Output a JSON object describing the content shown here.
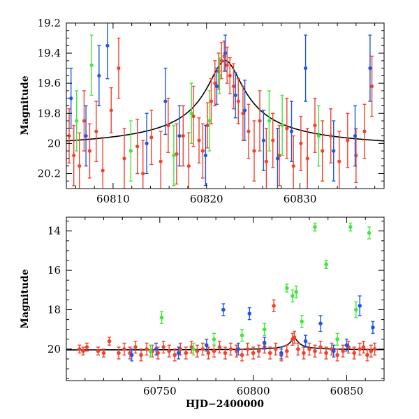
{
  "colors": {
    "red": "#f4412c",
    "blue": "#1e57e6",
    "green": "#45e63c",
    "model": "#000000",
    "axis": "#000000"
  },
  "chart_data": [
    {
      "type": "scatter",
      "panel": "top",
      "xlabel": "",
      "ylabel": "Magnitude",
      "xlim": [
        60805,
        60839
      ],
      "ylim": [
        20.3,
        19.2
      ],
      "y_inverted": true,
      "xticks": [
        60810,
        60820,
        60830
      ],
      "xtick_labels": [
        "60810",
        "60820",
        "60830"
      ],
      "yticks": [
        19.2,
        19.4,
        19.6,
        19.8,
        20.0,
        20.2
      ],
      "ytick_labels": [
        "19.2",
        "19.4",
        "19.6",
        "19.8",
        "20",
        "20.2"
      ],
      "grid": false,
      "legend": "none",
      "model_curve": {
        "baseline": 20.05,
        "peak_time": 60822.0,
        "peak_mag": 19.45,
        "tE": 1.9
      },
      "series": [
        {
          "color": "red",
          "points": [
            [
              60805.3,
              19.95,
              0.18
            ],
            [
              60805.8,
              20.08,
              0.2
            ],
            [
              60806.4,
              20.15,
              0.22
            ],
            [
              60806.9,
              19.85,
              0.2
            ],
            [
              60807.5,
              20.05,
              0.18
            ],
            [
              60808.2,
              19.92,
              0.2
            ],
            [
              60808.9,
              20.18,
              0.22
            ],
            [
              60809.8,
              19.78,
              0.15
            ],
            [
              60810.6,
              19.5,
              0.2
            ],
            [
              60811.2,
              20.1,
              0.2
            ],
            [
              60812.6,
              20.02,
              0.18
            ],
            [
              60813.2,
              20.2,
              0.22
            ],
            [
              60814.1,
              19.96,
              0.18
            ],
            [
              60815.1,
              20.12,
              0.2
            ],
            [
              60815.9,
              19.88,
              0.18
            ],
            [
              60816.8,
              20.07,
              0.2
            ],
            [
              60817.5,
              19.95,
              0.2
            ],
            [
              60818.1,
              20.15,
              0.22
            ],
            [
              60818.6,
              19.82,
              0.2
            ],
            [
              60819.2,
              19.98,
              0.15
            ],
            [
              60819.6,
              20.05,
              0.18
            ],
            [
              60820.1,
              19.88,
              0.15
            ],
            [
              60820.5,
              19.72,
              0.15
            ],
            [
              60820.9,
              19.6,
              0.15
            ],
            [
              60821.3,
              19.52,
              0.12
            ],
            [
              60821.6,
              19.45,
              0.12
            ],
            [
              60821.9,
              19.42,
              0.1
            ],
            [
              60822.2,
              19.48,
              0.12
            ],
            [
              60822.5,
              19.55,
              0.12
            ],
            [
              60822.9,
              19.62,
              0.15
            ],
            [
              60823.4,
              19.72,
              0.15
            ],
            [
              60823.9,
              19.8,
              0.18
            ],
            [
              60824.5,
              19.92,
              0.18
            ],
            [
              60825.1,
              20.05,
              0.2
            ],
            [
              60825.7,
              19.85,
              0.2
            ],
            [
              60826.4,
              20.12,
              0.22
            ],
            [
              60827.1,
              19.98,
              0.18
            ],
            [
              60827.8,
              20.08,
              0.2
            ],
            [
              60828.6,
              19.9,
              0.2
            ],
            [
              60829.3,
              20.15,
              0.2
            ],
            [
              60830.1,
              20.0,
              0.18
            ],
            [
              60830.8,
              20.1,
              0.2
            ],
            [
              60831.6,
              19.88,
              0.18
            ],
            [
              60832.4,
              20.05,
              0.2
            ],
            [
              60833.3,
              19.95,
              0.18
            ],
            [
              60834.2,
              20.12,
              0.2
            ],
            [
              60835.1,
              19.98,
              0.18
            ],
            [
              60836.0,
              20.08,
              0.18
            ],
            [
              60836.9,
              19.92,
              0.18
            ],
            [
              60837.7,
              19.62,
              0.2
            ]
          ]
        },
        {
          "color": "blue",
          "points": [
            [
              60805.5,
              19.7,
              0.2
            ],
            [
              60807.1,
              19.95,
              0.2
            ],
            [
              60808.5,
              19.55,
              0.2
            ],
            [
              60809.4,
              19.35,
              0.22
            ],
            [
              60813.6,
              20.0,
              0.2
            ],
            [
              60815.6,
              19.72,
              0.22
            ],
            [
              60817.1,
              19.95,
              0.2
            ],
            [
              60819.9,
              20.08,
              0.2
            ],
            [
              60821.1,
              19.62,
              0.12
            ],
            [
              60822.0,
              19.4,
              0.12
            ],
            [
              60823.1,
              19.68,
              0.15
            ],
            [
              60824.1,
              19.78,
              0.2
            ],
            [
              60826.1,
              19.98,
              0.2
            ],
            [
              60827.6,
              20.1,
              0.2
            ],
            [
              60829.1,
              19.92,
              0.2
            ],
            [
              60830.6,
              19.5,
              0.22
            ],
            [
              60833.6,
              20.05,
              0.2
            ],
            [
              60835.9,
              19.95,
              0.2
            ],
            [
              60837.5,
              19.5,
              0.22
            ]
          ]
        },
        {
          "color": "green",
          "points": [
            [
              60806.1,
              19.85,
              0.2
            ],
            [
              60807.7,
              19.48,
              0.2
            ],
            [
              60811.9,
              20.05,
              0.2
            ],
            [
              60816.5,
              20.08,
              0.2
            ],
            [
              60818.4,
              19.8,
              0.2
            ],
            [
              60820.3,
              19.85,
              0.2
            ],
            [
              60821.4,
              19.55,
              0.12
            ],
            [
              60826.7,
              19.85,
              0.2
            ],
            [
              60828.1,
              19.88,
              0.2
            ],
            [
              60832.0,
              19.95,
              0.2
            ]
          ]
        }
      ]
    },
    {
      "type": "scatter",
      "panel": "bottom",
      "xlabel": "HJD−2400000",
      "ylabel": "Magnitude",
      "xlim": [
        60700,
        60870
      ],
      "ylim": [
        21.6,
        13.3
      ],
      "y_inverted": true,
      "xticks": [
        60750,
        60800,
        60850
      ],
      "xtick_labels": [
        "60750",
        "60800",
        "60850"
      ],
      "yticks": [
        14,
        16,
        18,
        20
      ],
      "ytick_labels": [
        "14",
        "16",
        "18",
        "20"
      ],
      "grid": false,
      "legend": "none",
      "model_curve": {
        "baseline": 20.05,
        "peak_time": 60822.0,
        "peak_mag": 19.45,
        "tE": 1.9
      },
      "series": [
        {
          "color": "red",
          "points": [
            [
              60707,
              20.0,
              0.2
            ],
            [
              60709,
              20.1,
              0.2
            ],
            [
              60711,
              19.9,
              0.2
            ],
            [
              60717,
              20.1,
              0.2
            ],
            [
              60720,
              20.2,
              0.2
            ],
            [
              60723,
              19.6,
              0.2
            ],
            [
              60728,
              20.2,
              0.3
            ],
            [
              60731,
              20.0,
              0.3
            ],
            [
              60734,
              20.2,
              0.3
            ],
            [
              60737,
              19.9,
              0.3
            ],
            [
              60740,
              20.3,
              0.3
            ],
            [
              60743,
              20.0,
              0.3
            ],
            [
              60746,
              20.1,
              0.3
            ],
            [
              60749,
              20.2,
              0.3
            ],
            [
              60752,
              19.9,
              0.3
            ],
            [
              60755,
              20.1,
              0.3
            ],
            [
              60758,
              20.3,
              0.3
            ],
            [
              60761,
              20.0,
              0.3
            ],
            [
              60764,
              20.2,
              0.3
            ],
            [
              60767,
              19.9,
              0.3
            ],
            [
              60770,
              20.1,
              0.3
            ],
            [
              60773,
              20.0,
              0.3
            ],
            [
              60776,
              20.2,
              0.3
            ],
            [
              60779,
              20.1,
              0.3
            ],
            [
              60782,
              19.9,
              0.3
            ],
            [
              60785,
              20.2,
              0.3
            ],
            [
              60788,
              20.0,
              0.3
            ],
            [
              60791,
              20.1,
              0.3
            ],
            [
              60794,
              20.3,
              0.3
            ],
            [
              60797,
              20.0,
              0.3
            ],
            [
              60800,
              20.2,
              0.3
            ],
            [
              60803,
              20.1,
              0.3
            ],
            [
              60806,
              19.9,
              0.3
            ],
            [
              60809,
              20.2,
              0.3
            ],
            [
              60811,
              17.8,
              0.3
            ],
            [
              60812,
              20.0,
              0.3
            ],
            [
              60815,
              20.3,
              0.3
            ],
            [
              60818,
              20.1,
              0.3
            ],
            [
              60821,
              19.5,
              0.3
            ],
            [
              60822,
              19.4,
              0.3
            ],
            [
              60824,
              20.0,
              0.3
            ],
            [
              60827,
              20.2,
              0.3
            ],
            [
              60830,
              20.0,
              0.3
            ],
            [
              60833,
              20.1,
              0.3
            ],
            [
              60836,
              19.9,
              0.3
            ],
            [
              60839,
              20.2,
              0.3
            ],
            [
              60842,
              20.0,
              0.3
            ],
            [
              60845,
              20.3,
              0.3
            ],
            [
              60848,
              20.1,
              0.3
            ],
            [
              60851,
              19.9,
              0.3
            ],
            [
              60854,
              20.2,
              0.3
            ],
            [
              60857,
              20.0,
              0.3
            ],
            [
              60859,
              19.9,
              0.3
            ],
            [
              60861,
              20.3,
              0.3
            ],
            [
              60863,
              20.1,
              0.3
            ],
            [
              60865,
              20.0,
              0.3
            ]
          ]
        },
        {
          "color": "blue",
          "points": [
            [
              60735,
              20.3,
              0.3
            ],
            [
              60748,
              20.0,
              0.3
            ],
            [
              60760,
              20.2,
              0.3
            ],
            [
              60775,
              19.8,
              0.3
            ],
            [
              60784,
              18.0,
              0.3
            ],
            [
              60792,
              20.0,
              0.3
            ],
            [
              60798,
              18.2,
              0.3
            ],
            [
              60806,
              19.7,
              0.3
            ],
            [
              60815,
              20.2,
              0.3
            ],
            [
              60828,
              19.6,
              0.3
            ],
            [
              60836,
              18.7,
              0.4
            ],
            [
              60843,
              20.1,
              0.3
            ],
            [
              60850,
              19.8,
              0.3
            ],
            [
              60857,
              17.8,
              0.5
            ],
            [
              60864,
              18.9,
              0.3
            ]
          ]
        },
        {
          "color": "green",
          "points": [
            [
              60745,
              20.1,
              0.3
            ],
            [
              60751,
              18.4,
              0.3
            ],
            [
              60768,
              20.0,
              0.3
            ],
            [
              60779,
              19.5,
              0.3
            ],
            [
              60794,
              19.3,
              0.3
            ],
            [
              60806,
              19.0,
              0.3
            ],
            [
              60818,
              16.9,
              0.2
            ],
            [
              60821,
              17.3,
              0.3
            ],
            [
              60823,
              17.1,
              0.3
            ],
            [
              60826,
              18.6,
              0.3
            ],
            [
              60833,
              13.8,
              0.2
            ],
            [
              60839,
              15.7,
              0.2
            ],
            [
              60845,
              19.5,
              0.3
            ],
            [
              60852,
              13.8,
              0.2
            ],
            [
              60855,
              18.0,
              0.4
            ],
            [
              60862,
              14.1,
              0.3
            ]
          ]
        }
      ]
    }
  ]
}
